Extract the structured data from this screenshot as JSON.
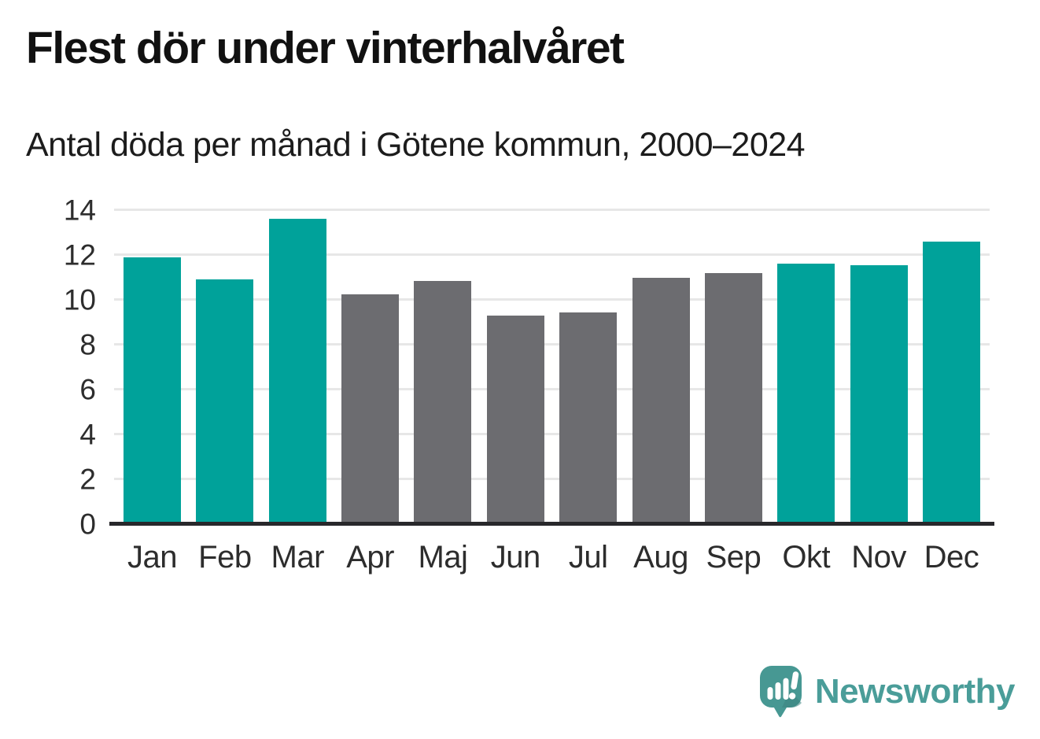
{
  "header": {
    "title": "Flest dör under vinterhalvåret",
    "subtitle": "Antal döda per månad i Götene kommun, 2000–2024"
  },
  "chart_data": {
    "type": "bar",
    "title": "Flest dör under vinterhalvåret",
    "subtitle": "Antal döda per månad i Götene kommun, 2000–2024",
    "categories": [
      "Jan",
      "Feb",
      "Mar",
      "Apr",
      "Maj",
      "Jun",
      "Jul",
      "Aug",
      "Sep",
      "Okt",
      "Nov",
      "Dec"
    ],
    "values": [
      11.9,
      10.9,
      13.6,
      10.25,
      10.85,
      9.3,
      9.45,
      11.0,
      11.2,
      11.6,
      11.55,
      12.6
    ],
    "bar_colors": [
      "#00a29a",
      "#00a29a",
      "#00a29a",
      "#6c6c70",
      "#6c6c70",
      "#6c6c70",
      "#6c6c70",
      "#6c6c70",
      "#6c6c70",
      "#00a29a",
      "#00a29a",
      "#00a29a"
    ],
    "xlabel": "",
    "ylabel": "",
    "ylim": [
      0,
      14
    ],
    "yticks": [
      0,
      2,
      4,
      6,
      8,
      10,
      12,
      14
    ],
    "grid": true,
    "legend": "none",
    "colors": {
      "highlight_teal": "#00a29a",
      "neutral_gray": "#6c6c70",
      "gridline": "#e7e7e7",
      "axis_line": "#28282b"
    }
  },
  "footer": {
    "brand": "Newsworthy",
    "brand_color": "#4a9d99",
    "logo_icon": "speech-bubble-bar-chart-icon"
  }
}
